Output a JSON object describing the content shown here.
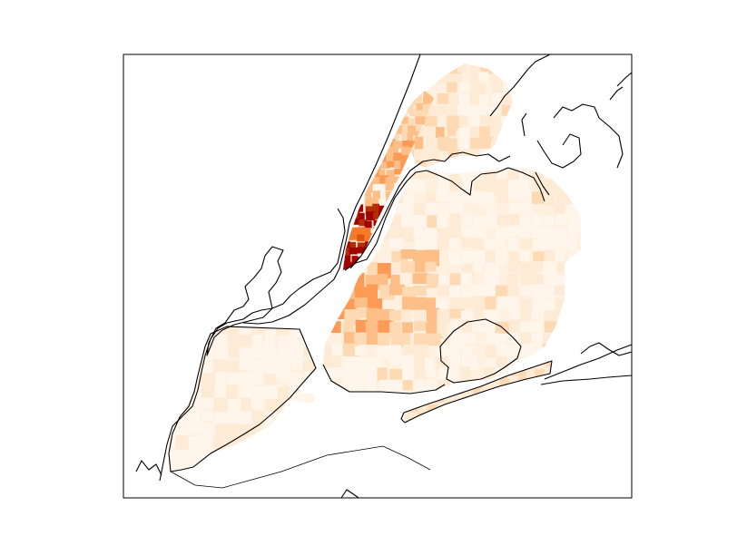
{
  "map": {
    "type": "choropleth",
    "colormap": "OrRd",
    "color_ramp": [
      "#fff5eb",
      "#feebd6",
      "#fdd9b4",
      "#fdbe87",
      "#fd9a55",
      "#f57a2c",
      "#e0540d",
      "#b23003",
      "#a30000"
    ],
    "region_fill": "#fff0e0",
    "background": "#ffffff",
    "coastline_color": "#000000",
    "frame_color": "#000000"
  }
}
